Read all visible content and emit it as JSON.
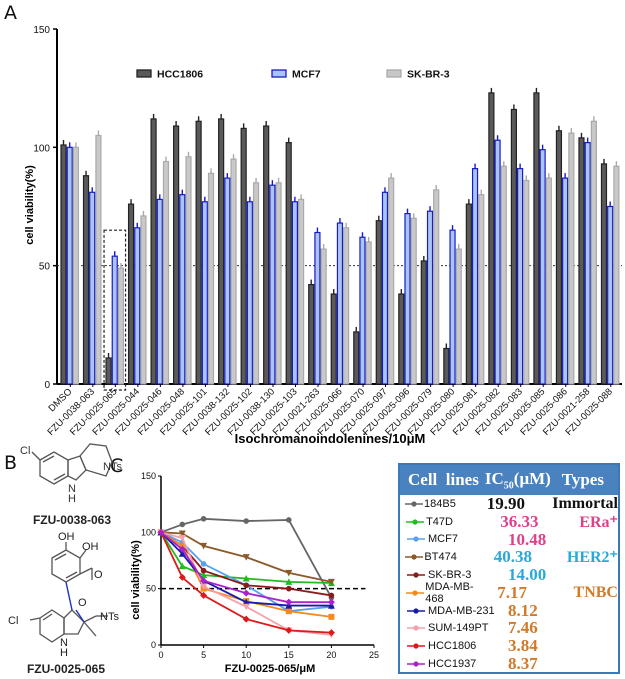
{
  "panels": {
    "a": "A",
    "b": "B",
    "c": "C"
  },
  "colors": {
    "hcc1806_fill": "#5a5a5a",
    "mcf7_fill": "#a9c5f5",
    "mcf7_stroke": "#1a1acc",
    "skbr3_fill": "#c8c8c8",
    "table_header": "#4a82c0",
    "type_immortal": "#111111",
    "type_era": "#e0408a",
    "type_her2": "#2aa8d8",
    "type_tnbc": "#d07a2a"
  },
  "chart_data": [
    {
      "type": "bar",
      "title": "",
      "xlabel": "Isochromanoindolenines/10μM",
      "ylabel": "cell viability(%)",
      "ylim": [
        0,
        150
      ],
      "yticks": [
        0,
        50,
        100,
        150
      ],
      "reference_line": 50,
      "legend_placement": "top",
      "highlight_box_category": "FZU-0025-065",
      "categories": [
        "DMSO",
        "FZU-0038-063",
        "FZU-0025-065",
        "FZU-0025-044",
        "FZU-0025-046",
        "FZU-0025-048",
        "FZU-0025-101",
        "FZU-0038-132",
        "FZU-0025-102",
        "FZU-0038-130",
        "FZU-0025-103",
        "FZU-0021-263",
        "FZU-0025-066",
        "FZU-0025-070",
        "FZU-0025-097",
        "FZU-0025-096",
        "FZU-0025-079",
        "FZU-0025-080",
        "FZU-0025-081",
        "FZU-0025-082",
        "FZU-0025-083",
        "FZU-0025-085",
        "FZU-0025-086",
        "FZU-0021-258",
        "FZU-0025-088"
      ],
      "series": [
        {
          "name": "HCC1806",
          "values": [
            101,
            88,
            11,
            76,
            112,
            109,
            111,
            112,
            108,
            109,
            102,
            42,
            38,
            22,
            69,
            38,
            52,
            15,
            76,
            123,
            116,
            123,
            107,
            104,
            93
          ]
        },
        {
          "name": "MCF7",
          "values": [
            100,
            81,
            54,
            66,
            78,
            80,
            77,
            87,
            77,
            84,
            77,
            64,
            68,
            62,
            81,
            72,
            73,
            65,
            91,
            103,
            91,
            99,
            87,
            102,
            75
          ]
        },
        {
          "name": "SK-BR-3",
          "values": [
            100,
            105,
            49,
            71,
            94,
            96,
            89,
            95,
            85,
            85,
            78,
            57,
            66,
            60,
            87,
            70,
            82,
            57,
            80,
            92,
            86,
            87,
            106,
            111,
            92
          ]
        }
      ]
    },
    {
      "type": "line",
      "title": "",
      "xlabel": "FZU-0025-065/μM",
      "ylabel": "cell viability(%)",
      "xlim": [
        0,
        25
      ],
      "ylim": [
        0,
        150
      ],
      "xticks": [
        0,
        5,
        10,
        15,
        20,
        25
      ],
      "yticks": [
        0,
        50,
        100,
        150
      ],
      "reference_line": 50,
      "x": [
        0,
        2.5,
        5,
        10,
        15,
        20
      ],
      "series": [
        {
          "name": "184B5",
          "color": "#666666",
          "marker": "circle",
          "values": [
            100,
            107,
            112,
            110,
            111,
            42
          ]
        },
        {
          "name": "T47D",
          "color": "#22bb22",
          "marker": "triangle",
          "values": [
            100,
            70,
            62,
            59,
            56,
            55
          ]
        },
        {
          "name": "MCF7",
          "color": "#5aa0ee",
          "marker": "circle",
          "values": [
            100,
            91,
            72,
            53,
            30,
            34
          ]
        },
        {
          "name": "BT474",
          "color": "#8b5a2b",
          "marker": "tri-down",
          "values": [
            100,
            99,
            88,
            78,
            64,
            56
          ]
        },
        {
          "name": "SK-BR-3",
          "color": "#8b1a1a",
          "marker": "star",
          "values": [
            100,
            88,
            66,
            53,
            50,
            44
          ]
        },
        {
          "name": "MDA-MB-468",
          "color": "#f08c1e",
          "marker": "square",
          "values": [
            100,
            88,
            50,
            39,
            30,
            25
          ]
        },
        {
          "name": "MDA-MB-231",
          "color": "#1a1aaa",
          "marker": "triangle",
          "values": [
            100,
            81,
            57,
            38,
            35,
            35
          ]
        },
        {
          "name": "SUM-149PT",
          "color": "#f4a0aa",
          "marker": "tri-down",
          "values": [
            100,
            95,
            52,
            34,
            13,
            9
          ]
        },
        {
          "name": "HCC1806",
          "color": "#dd1a1a",
          "marker": "diamond",
          "values": [
            100,
            60,
            44,
            23,
            13,
            11
          ]
        },
        {
          "name": "HCC1937",
          "color": "#aa22cc",
          "marker": "diamond",
          "values": [
            100,
            85,
            57,
            46,
            38,
            38
          ]
        }
      ]
    }
  ],
  "structures": [
    {
      "label": "FZU-0038-063",
      "atoms": {
        "cl": "Cl",
        "nts": "NTs",
        "nh": "N",
        "h": "H"
      }
    },
    {
      "label": "FZU-0025-065",
      "atoms": {
        "oh1": "OH",
        "oh2": "OH",
        "o_carbonyl": "O",
        "o_ring": "O",
        "cl": "Cl",
        "nts": "NTs",
        "nh": "N",
        "h": "H"
      }
    }
  ],
  "table": {
    "headers": {
      "cell_lines": "Cell  lines",
      "ic50_prefix": "IC",
      "ic50_sub": "50",
      "ic50_suffix": "(μM)",
      "types": "Types"
    },
    "rows": [
      {
        "cell_line": "184B5",
        "ic50": "19.90",
        "type": "Immortal",
        "ic_color": "#111111"
      },
      {
        "cell_line": "T47D",
        "ic50": "36.33",
        "type": "ERa⁺",
        "ic_color": "#e0408a"
      },
      {
        "cell_line": "MCF7",
        "ic50": "10.48",
        "type": "",
        "ic_color": "#e0408a"
      },
      {
        "cell_line": "BT474",
        "ic50": "40.38",
        "type": "HER2⁺",
        "ic_color": "#2aa8d8"
      },
      {
        "cell_line": "SK-BR-3",
        "ic50": "14.00",
        "type": "",
        "ic_color": "#2aa8d8"
      },
      {
        "cell_line": "MDA-MB-468",
        "ic50": "7.17",
        "type": "TNBC",
        "ic_color": "#d07a2a"
      },
      {
        "cell_line": "MDA-MB-231",
        "ic50": "8.12",
        "type": "",
        "ic_color": "#d07a2a"
      },
      {
        "cell_line": "SUM-149PT",
        "ic50": "7.46",
        "type": "",
        "ic_color": "#d07a2a"
      },
      {
        "cell_line": "HCC1806",
        "ic50": "3.84",
        "type": "",
        "ic_color": "#d07a2a"
      },
      {
        "cell_line": "HCC1937",
        "ic50": "8.37",
        "type": "",
        "ic_color": "#d07a2a"
      }
    ]
  }
}
